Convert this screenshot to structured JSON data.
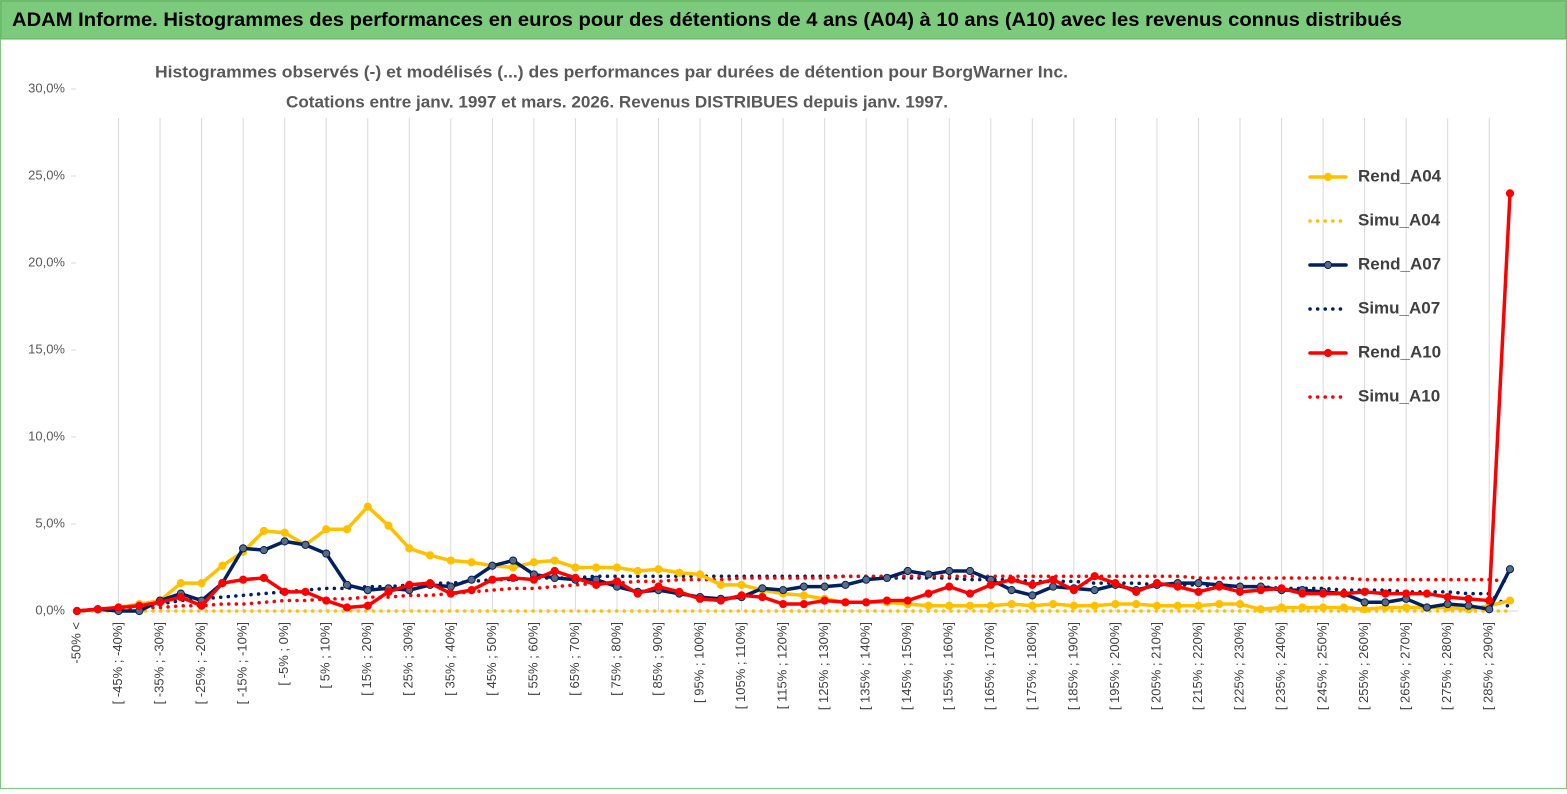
{
  "chart_data": {
    "type": "line",
    "header": "ADAM Informe. Histogrammes des performances en euros pour des détentions de 4 ans (A04) à 10 ans (A10) avec les revenus connus distribués",
    "title": "Histogrammes observés (-) et modélisés (...) des performances par durées de détention pour BorgWarner Inc.",
    "subtitle": "Cotations entre janv. 1997 et mars. 2026. Revenus DISTRIBUES depuis janv. 1997.",
    "categories": [
      "-50% <",
      null,
      "[ -45% ; -40%]",
      null,
      "[ -35% ; -30%]",
      null,
      "[ -25% ; -20%]",
      null,
      "[ -15% ; -10%]",
      null,
      "[ -5% ; 0%]",
      null,
      "[ 5% ; 10%]",
      null,
      "[ 15% ; 20%]",
      null,
      "[ 25% ; 30%]",
      null,
      "[ 35% ; 40%]",
      null,
      "[ 45% ; 50%]",
      null,
      "[ 55% ; 60%]",
      null,
      "[ 65% ; 70%]",
      null,
      "[ 75% ; 80%]",
      null,
      "[ 85% ; 90%]",
      null,
      "[ 95% ; 100%]",
      null,
      "[ 105% ; 110%]",
      null,
      "[ 115% ; 120%]",
      null,
      "[ 125% ; 130%]",
      null,
      "[ 135% ; 140%]",
      null,
      "[ 145% ; 150%]",
      null,
      "[ 155% ; 160%]",
      null,
      "[ 165% ; 170%]",
      null,
      "[ 175% ; 180%]",
      null,
      "[ 185% ; 190%]",
      null,
      "[ 195% ; 200%]",
      null,
      "[ 205% ; 210%]",
      null,
      "[ 215% ; 220%]",
      null,
      "[ 225% ; 230%]",
      null,
      "[ 235% ; 240%]",
      null,
      "[ 245% ; 250%]",
      null,
      "[ 255% ; 260%]",
      null,
      "[ 265% ; 270%]",
      null,
      "[ 275% ; 280%]",
      null,
      "[ 285% ; 290%]",
      null
    ],
    "ylim": [
      0,
      30
    ],
    "yticks": [
      {
        "value": 0,
        "label": "0,0%"
      },
      {
        "value": 5,
        "label": "5,0%"
      },
      {
        "value": 10,
        "label": "10,0%"
      },
      {
        "value": 15,
        "label": "15,0%"
      },
      {
        "value": 20,
        "label": "20,0%"
      },
      {
        "value": 25,
        "label": "25,0%"
      },
      {
        "value": 30,
        "label": "30,0%"
      }
    ],
    "grid": true,
    "legend": "right",
    "series": [
      {
        "name": "Rend_A04",
        "color": "#ffc000",
        "style": "solid",
        "markers": true,
        "values": [
          0,
          0.1,
          0.2,
          0.4,
          0.6,
          1.6,
          1.6,
          2.6,
          3.4,
          4.6,
          4.5,
          3.8,
          4.7,
          4.7,
          6.0,
          4.9,
          3.6,
          3.2,
          2.9,
          2.8,
          2.6,
          2.5,
          2.8,
          2.9,
          2.5,
          2.5,
          2.5,
          2.3,
          2.4,
          2.2,
          2.1,
          1.5,
          1.5,
          1.2,
          1.0,
          0.9,
          0.7,
          0.5,
          0.5,
          0.5,
          0.4,
          0.3,
          0.3,
          0.3,
          0.3,
          0.4,
          0.3,
          0.4,
          0.3,
          0.3,
          0.4,
          0.4,
          0.3,
          0.3,
          0.3,
          0.4,
          0.4,
          0.1,
          0.2,
          0.2,
          0.2,
          0.2,
          0.1,
          0.2,
          0.2,
          0.2,
          0.2,
          0.1,
          0.3,
          0.6
        ]
      },
      {
        "name": "Simu_A04",
        "color": "#ffc000",
        "style": "dotted",
        "markers": false,
        "values": [
          0,
          0,
          0,
          0,
          0,
          0,
          0,
          0,
          0,
          0,
          0,
          0,
          0,
          0,
          0,
          0,
          0,
          0,
          0,
          0,
          0,
          0,
          0,
          0,
          0,
          0,
          0,
          0,
          0,
          0,
          0,
          0,
          0,
          0,
          0,
          0,
          0,
          0,
          0,
          0,
          0,
          0,
          0,
          0,
          0,
          0,
          0,
          0,
          0,
          0,
          0,
          0,
          0,
          0,
          0,
          0,
          0,
          0,
          0,
          0,
          0,
          0,
          0,
          0,
          0,
          0,
          0,
          0,
          0,
          0
        ]
      },
      {
        "name": "Rend_A07",
        "color": "#002060",
        "style": "solid",
        "markers": true,
        "values": [
          0,
          0.1,
          0,
          0,
          0.6,
          1.0,
          0.6,
          1.6,
          3.6,
          3.5,
          4.0,
          3.8,
          3.3,
          1.5,
          1.2,
          1.3,
          1.2,
          1.5,
          1.4,
          1.8,
          2.6,
          2.9,
          2.1,
          1.9,
          1.8,
          1.8,
          1.4,
          1.1,
          1.2,
          1.0,
          0.8,
          0.7,
          0.8,
          1.3,
          1.2,
          1.4,
          1.4,
          1.5,
          1.8,
          1.9,
          2.3,
          2.1,
          2.3,
          2.3,
          1.8,
          1.2,
          0.9,
          1.4,
          1.3,
          1.2,
          1.5,
          1.2,
          1.5,
          1.6,
          1.6,
          1.5,
          1.4,
          1.4,
          1.2,
          1.2,
          1.1,
          1.0,
          0.5,
          0.5,
          0.7,
          0.2,
          0.4,
          0.3,
          0.1,
          2.4
        ]
      },
      {
        "name": "Simu_A07",
        "color": "#002060",
        "style": "dotted",
        "markers": false,
        "values": [
          0,
          0.1,
          0.2,
          0.3,
          0.4,
          0.6,
          0.7,
          0.8,
          0.9,
          1.0,
          1.1,
          1.2,
          1.3,
          1.3,
          1.4,
          1.4,
          1.5,
          1.6,
          1.6,
          1.7,
          1.8,
          1.8,
          1.9,
          1.9,
          1.9,
          2.0,
          2.0,
          2.0,
          2.0,
          2.0,
          2.0,
          2.0,
          2.0,
          2.0,
          2.0,
          2.0,
          2.0,
          2.0,
          2.0,
          1.9,
          1.9,
          1.9,
          1.9,
          1.8,
          1.8,
          1.8,
          1.7,
          1.7,
          1.7,
          1.6,
          1.6,
          1.6,
          1.5,
          1.5,
          1.5,
          1.4,
          1.4,
          1.4,
          1.3,
          1.3,
          1.3,
          1.2,
          1.2,
          1.2,
          1.1,
          1.1,
          1.1,
          1.0,
          1.0,
          0.2
        ]
      },
      {
        "name": "Rend_A10",
        "color": "#ff0000",
        "style": "solid",
        "markers": true,
        "values": [
          0,
          0.1,
          0.2,
          0.3,
          0.5,
          0.8,
          0.3,
          1.6,
          1.8,
          1.9,
          1.1,
          1.1,
          0.6,
          0.2,
          0.3,
          1.1,
          1.5,
          1.6,
          1.0,
          1.2,
          1.8,
          1.9,
          1.8,
          2.3,
          1.9,
          1.5,
          1.7,
          1.0,
          1.4,
          1.1,
          0.7,
          0.6,
          0.9,
          0.8,
          0.4,
          0.4,
          0.6,
          0.5,
          0.5,
          0.6,
          0.6,
          1.0,
          1.4,
          1.0,
          1.5,
          1.8,
          1.5,
          1.8,
          1.2,
          2.0,
          1.6,
          1.1,
          1.6,
          1.4,
          1.1,
          1.4,
          1.1,
          1.2,
          1.3,
          1.0,
          1.0,
          1.0,
          1.1,
          1.0,
          1.0,
          1.0,
          0.8,
          0.7,
          0.6,
          24.0
        ]
      },
      {
        "name": "Simu_A10",
        "color": "#ff0000",
        "style": "dotted",
        "markers": false,
        "values": [
          0,
          0.1,
          0.1,
          0.2,
          0.2,
          0.3,
          0.3,
          0.4,
          0.4,
          0.5,
          0.6,
          0.6,
          0.7,
          0.7,
          0.8,
          0.8,
          0.9,
          0.9,
          1.0,
          1.1,
          1.2,
          1.3,
          1.3,
          1.4,
          1.5,
          1.6,
          1.6,
          1.7,
          1.7,
          1.8,
          1.8,
          1.8,
          1.9,
          1.9,
          1.9,
          1.9,
          1.9,
          2.0,
          2.0,
          2.0,
          2.0,
          2.0,
          2.0,
          2.0,
          2.0,
          2.0,
          2.0,
          2.0,
          2.0,
          2.0,
          2.0,
          2.0,
          2.0,
          2.0,
          1.9,
          1.9,
          1.9,
          1.9,
          1.9,
          1.9,
          1.9,
          1.9,
          1.8,
          1.8,
          1.8,
          1.8,
          1.8,
          1.8,
          1.8,
          1.7
        ]
      }
    ]
  }
}
